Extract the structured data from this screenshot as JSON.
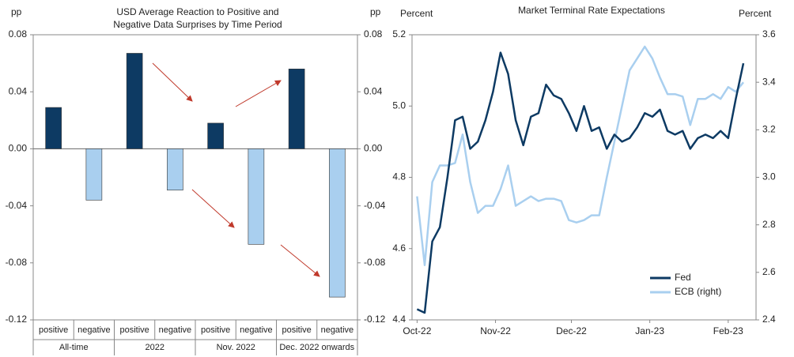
{
  "chart_data": [
    {
      "type": "bar",
      "title": [
        "USD Average Reaction to Positive and",
        "Negative Data Surprises by Time Period"
      ],
      "y_label": "pp",
      "y2_label": "pp",
      "categories": [
        "positive",
        "negative",
        "positive",
        "negative",
        "positive",
        "negative",
        "positive",
        "negative"
      ],
      "groups": [
        "All-time",
        "2022",
        "Nov. 2022",
        "Dec. 2022 onwards"
      ],
      "values": [
        0.029,
        -0.036,
        0.067,
        -0.029,
        0.018,
        -0.067,
        0.056,
        -0.104
      ],
      "colors": [
        "#0d3a63",
        "#a9cfef"
      ],
      "ylim": [
        -0.12,
        0.08
      ],
      "yticks": [
        -0.12,
        -0.08,
        -0.04,
        {
          "value": 0,
          "label": "0.00"
        },
        0.04,
        0.08
      ]
    },
    {
      "type": "line",
      "title": "Market Terminal Rate Expectations",
      "y_label": "Percent",
      "y2_label": "Percent",
      "x": [
        0,
        3,
        6,
        9,
        12,
        15,
        18,
        21,
        24,
        27,
        30,
        33,
        36,
        39,
        42,
        45,
        48,
        51,
        54,
        57,
        60,
        63,
        66,
        69,
        72,
        75,
        78,
        81,
        84,
        87,
        90,
        93,
        96,
        99,
        102,
        105,
        108,
        111,
        114,
        117,
        120,
        123,
        126,
        129
      ],
      "xlim": [
        -2,
        134
      ],
      "xticks": [
        {
          "value": 0,
          "label": "Oct-22"
        },
        {
          "value": 31,
          "label": "Nov-22"
        },
        {
          "value": 61,
          "label": "Dec-22"
        },
        {
          "value": 92,
          "label": "Jan-23"
        },
        {
          "value": 123,
          "label": "Feb-23"
        }
      ],
      "ylim": [
        4.4,
        5.2
      ],
      "yticks": [
        4.4,
        4.6,
        4.8,
        {
          "value": 5.0,
          "label": "5.0"
        },
        5.2
      ],
      "y2lim": [
        2.4,
        3.6
      ],
      "y2ticks": [
        2.4,
        2.6,
        2.8,
        {
          "value": 3.0,
          "label": "3.0"
        },
        3.2,
        3.4,
        3.6
      ],
      "series": [
        {
          "name": "Fed",
          "color": "#0d3a63",
          "values": [
            4.43,
            4.42,
            4.62,
            4.66,
            4.8,
            4.96,
            4.97,
            4.88,
            4.9,
            4.96,
            5.04,
            5.15,
            5.09,
            4.96,
            4.89,
            4.97,
            4.98,
            5.06,
            5.03,
            5.02,
            4.98,
            4.93,
            5.0,
            4.93,
            4.94,
            4.88,
            4.92,
            4.9,
            4.91,
            4.94,
            4.98,
            4.97,
            4.99,
            4.93,
            4.92,
            4.93,
            4.88,
            4.91,
            4.92,
            4.91,
            4.93,
            4.91,
            5.02,
            5.12
          ]
        },
        {
          "name": "ECB (right)",
          "color": "#a9cfef",
          "axis": "y2",
          "values": [
            2.92,
            2.63,
            2.98,
            3.05,
            3.05,
            3.06,
            3.18,
            2.98,
            2.85,
            2.88,
            2.88,
            2.95,
            3.05,
            2.88,
            2.9,
            2.92,
            2.9,
            2.91,
            2.91,
            2.9,
            2.82,
            2.81,
            2.82,
            2.84,
            2.84,
            3.0,
            3.15,
            3.3,
            3.45,
            3.5,
            3.55,
            3.5,
            3.42,
            3.35,
            3.35,
            3.34,
            3.22,
            3.33,
            3.33,
            3.35,
            3.33,
            3.38,
            3.36,
            3.4
          ]
        }
      ]
    }
  ]
}
